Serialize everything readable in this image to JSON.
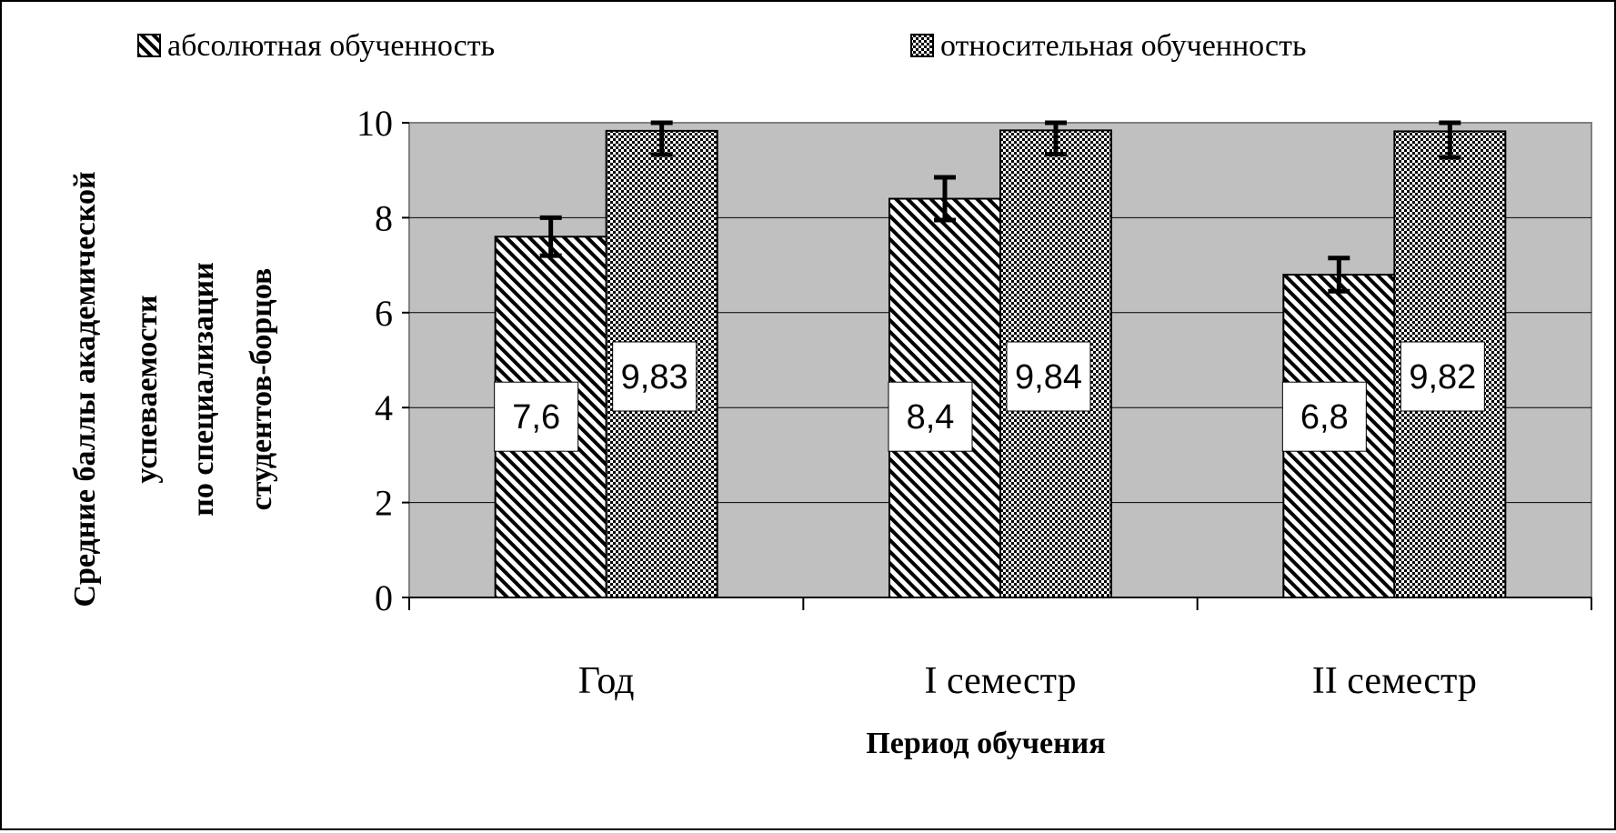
{
  "chart_data": {
    "type": "bar",
    "categories": [
      "Год",
      "I семестр",
      "II семестр"
    ],
    "series": [
      {
        "name": "абсолютная обученность",
        "values": [
          7.6,
          8.4,
          6.8
        ],
        "labels": [
          "7,6",
          "8,4",
          "6,8"
        ],
        "pattern": "diagonal-hatch",
        "error": [
          0.4,
          0.45,
          0.35
        ]
      },
      {
        "name": "относительная обученность",
        "values": [
          9.83,
          9.84,
          9.82
        ],
        "labels": [
          "9,83",
          "9,84",
          "9,82"
        ],
        "pattern": "checkered",
        "error": [
          0.5,
          0.5,
          0.55
        ]
      }
    ],
    "ylim": [
      0,
      10
    ],
    "yticks": [
      "0",
      "2",
      "4",
      "6",
      "8",
      "10"
    ],
    "ylabel": [
      "Средние баллы академической",
      "успеваемости",
      "по специализации",
      "студентов-борцов"
    ],
    "xlabel": "Период обучения",
    "grid": true,
    "legend_position": "top",
    "plot_background": "#c0c0c0"
  }
}
